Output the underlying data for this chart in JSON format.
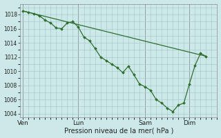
{
  "background_color": "#cce8e8",
  "grid_color": "#aacccc",
  "line_color": "#2d6e2d",
  "xlabel": "Pression niveau de la mer( hPa )",
  "xlabel_fontsize": 7,
  "ylim": [
    1003.5,
    1019.5
  ],
  "yticks": [
    1004,
    1006,
    1008,
    1010,
    1012,
    1014,
    1016,
    1018
  ],
  "ytick_fontsize": 5.5,
  "day_labels": [
    "Ven",
    "Lun",
    "Sam",
    "Dim"
  ],
  "day_positions": [
    0,
    10,
    22,
    30
  ],
  "xlim": [
    -0.5,
    35
  ],
  "series1_x": [
    0,
    1,
    2,
    3,
    4,
    5,
    6,
    7,
    8,
    9,
    10,
    11,
    12,
    13,
    14,
    15,
    16,
    17,
    18,
    19,
    20,
    21,
    22,
    23,
    24,
    25,
    26,
    27,
    28,
    29,
    30,
    31,
    32,
    33
  ],
  "series1_y": [
    1018.5,
    1018.3,
    1018.1,
    1017.8,
    1017.2,
    1016.8,
    1016.1,
    1016.0,
    1016.8,
    1017.0,
    1016.2,
    1014.8,
    1014.3,
    1013.2,
    1012.0,
    1011.5,
    1011.0,
    1010.5,
    1009.8,
    1010.7,
    1009.5,
    1008.2,
    1007.8,
    1007.3,
    1006.0,
    1005.5,
    1004.8,
    1004.3,
    1005.2,
    1005.5,
    1008.2,
    1010.8,
    1012.5,
    1012.1
  ],
  "series2_x": [
    0,
    33
  ],
  "series2_y": [
    1018.5,
    1012.1
  ]
}
